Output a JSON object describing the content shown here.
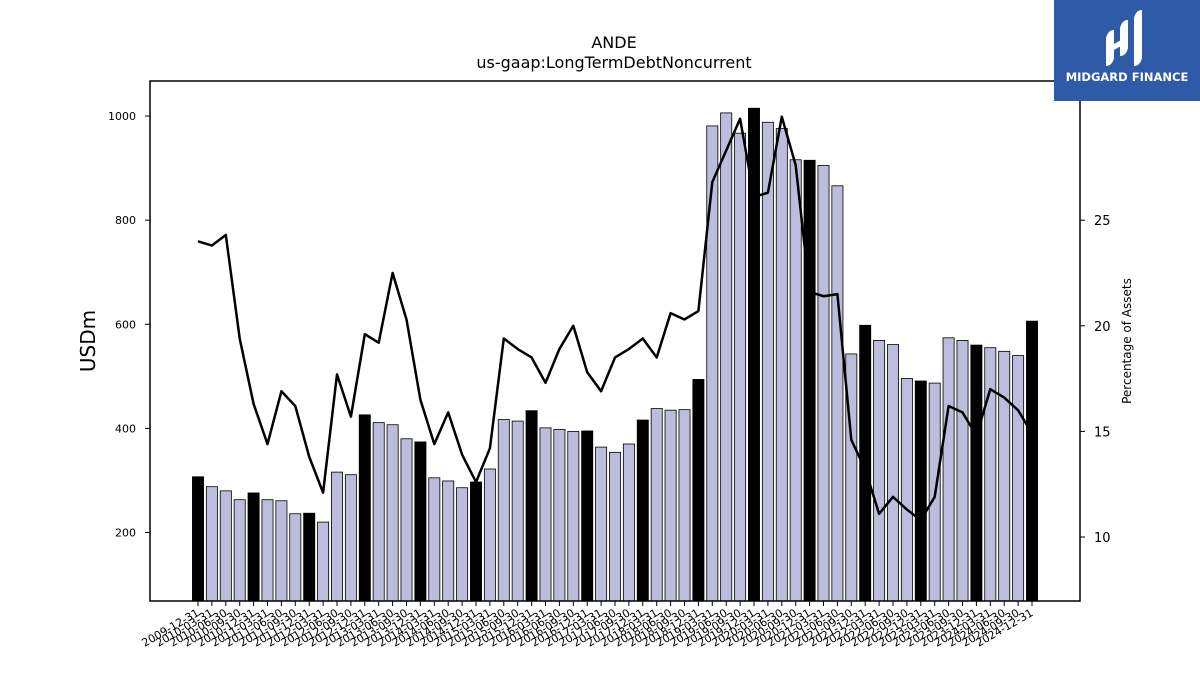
{
  "chart_data": {
    "type": "bar",
    "title": "ANDE",
    "subtitle": "us-gaap:LongTermDebtNoncurrent",
    "ylabel": "USDm",
    "y2label": "Percentage of Assets",
    "ylim": [
      68.4,
      1067.3
    ],
    "y2lim": [
      6.97,
      31.59
    ],
    "yticks": [
      200,
      400,
      600,
      800,
      1000
    ],
    "y2ticks": [
      10,
      15,
      20,
      25
    ],
    "grid": false,
    "x": [
      "2009-12-31",
      "2010-03-31",
      "2010-06-30",
      "2010-09-30",
      "2010-12-31",
      "2011-03-31",
      "2011-06-30",
      "2011-09-30",
      "2011-12-31",
      "2012-03-31",
      "2012-06-30",
      "2012-09-30",
      "2012-12-31",
      "2013-03-31",
      "2013-06-30",
      "2013-09-30",
      "2013-12-31",
      "2014-03-31",
      "2014-06-30",
      "2014-09-30",
      "2014-12-31",
      "2015-03-31",
      "2015-06-30",
      "2015-09-30",
      "2015-12-31",
      "2016-03-31",
      "2016-06-30",
      "2016-09-30",
      "2016-12-31",
      "2017-03-31",
      "2017-06-30",
      "2017-09-30",
      "2017-12-31",
      "2018-03-31",
      "2018-06-30",
      "2018-09-30",
      "2018-12-31",
      "2019-03-31",
      "2019-06-30",
      "2019-09-30",
      "2019-12-31",
      "2020-03-31",
      "2020-06-30",
      "2020-09-30",
      "2020-12-31",
      "2021-03-31",
      "2021-06-30",
      "2021-09-30",
      "2021-12-31",
      "2022-03-31",
      "2022-06-30",
      "2022-09-30",
      "2022-12-31",
      "2023-03-31",
      "2023-06-30",
      "2023-09-30",
      "2023-12-31",
      "2024-03-31",
      "2024-06-30",
      "2024-09-30",
      "2024-12-31"
    ],
    "x_tick_labels": [
      "2009-12-31",
      "2010-03-31",
      "2010-06-30",
      "2010-09-30",
      "2010-12-31",
      "2011-03-31",
      "2011-06-30",
      "2011-09-30",
      "2011-12-31",
      "2012-03-31",
      "2012-06-30",
      "2012-09-30",
      "2012-12-31",
      "2013-03-31",
      "2013-06-30",
      "2013-09-30",
      "2013-12-31",
      "2014-03-31",
      "2014-06-30",
      "2014-09-30",
      "2014-12-31",
      "2015-03-31",
      "2015-06-30",
      "2015-09-30",
      "2015-12-31",
      "2016-03-31",
      "2016-06-30",
      "2016-09-30",
      "2016-12-31",
      "2017-03-31",
      "2017-06-30",
      "2017-09-30",
      "2017-12-31",
      "2018-03-31",
      "2018-06-30",
      "2018-09-30",
      "2018-12-31",
      "2019-03-31",
      "2019-06-30",
      "2019-09-30",
      "2019-12-31",
      "2020-03-31",
      "2020-06-30",
      "2020-09-30",
      "2020-12-31",
      "2021-03-31",
      "2021-06-30",
      "2021-09-30",
      "2021-12-31",
      "2022-03-31",
      "2022-06-30",
      "2022-09-30",
      "2022-12-31",
      "2023-03-31",
      "2023-06-30",
      "2023-09-30",
      "2023-12-31",
      "2024-03-31",
      "2024-06-30",
      "2024-09-30",
      "2024-12-31"
    ],
    "series": [
      {
        "kind": "bar",
        "axis": "left",
        "values": [
          307,
          288,
          280,
          263,
          276,
          263,
          261,
          236,
          237,
          220,
          316,
          311,
          426,
          411,
          407,
          380,
          374,
          305,
          299,
          286,
          297,
          322,
          417,
          414,
          434,
          401,
          398,
          394,
          395,
          364,
          354,
          370,
          416,
          438,
          435,
          436,
          494,
          981,
          1006,
          967,
          1015,
          988,
          976,
          916,
          915,
          905,
          866,
          543,
          598,
          569,
          561,
          496,
          491,
          487,
          574,
          569,
          560,
          555,
          548,
          540,
          606
        ],
        "highlight_every": 4
      },
      {
        "kind": "line",
        "axis": "right",
        "values": [
          24.0,
          23.8,
          24.3,
          19.4,
          16.3,
          14.4,
          16.9,
          16.2,
          13.8,
          12.1,
          17.7,
          15.7,
          19.6,
          19.2,
          22.5,
          20.3,
          16.5,
          14.4,
          15.9,
          13.9,
          12.6,
          14.2,
          19.4,
          18.9,
          18.5,
          17.3,
          18.9,
          20.0,
          17.8,
          16.9,
          18.5,
          18.9,
          19.4,
          18.5,
          20.6,
          20.3,
          20.7,
          26.8,
          28.3,
          29.8,
          26.1,
          26.3,
          29.9,
          27.6,
          21.6,
          21.4,
          21.5,
          14.6,
          13.2,
          11.1,
          11.9,
          11.3,
          10.8,
          11.9,
          16.2,
          15.9,
          14.8,
          17.0,
          16.6,
          16.0,
          14.9
        ]
      }
    ],
    "colors": {
      "bar_regular": "#bcbcdc",
      "bar_highlight": "#000000",
      "bar_edge": "#000000",
      "line": "#000000"
    }
  },
  "logo": {
    "text": "MIDGARD FINANCE",
    "background": "#2f5aa8"
  }
}
